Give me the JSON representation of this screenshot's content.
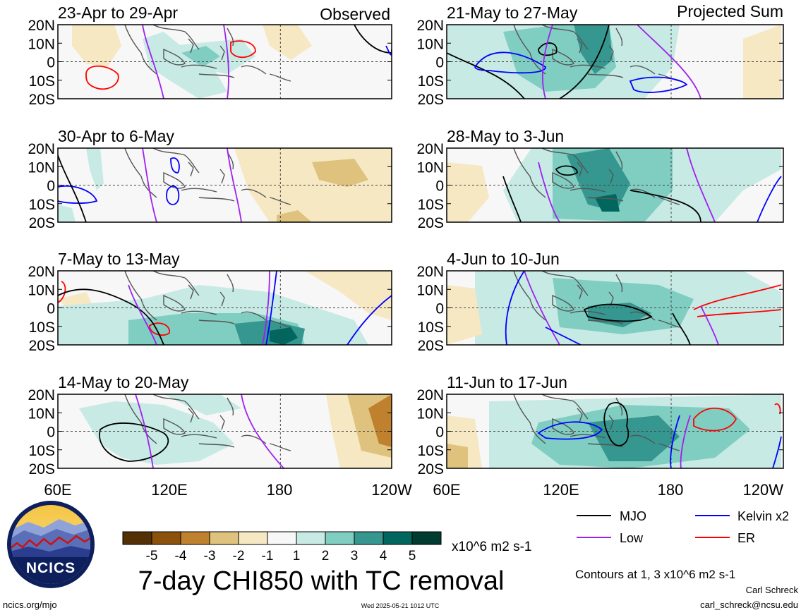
{
  "column_titles": {
    "left": "Observed",
    "right": "Projected Sum"
  },
  "panels": [
    {
      "id": "p1",
      "title": "23-Apr to 29-Apr",
      "col": 0,
      "row": 0
    },
    {
      "id": "p2",
      "title": "30-Apr to 6-May",
      "col": 0,
      "row": 1
    },
    {
      "id": "p3",
      "title": "7-May to 13-May",
      "col": 0,
      "row": 2
    },
    {
      "id": "p4",
      "title": "14-May to 20-May",
      "col": 0,
      "row": 3
    },
    {
      "id": "p5",
      "title": "21-May to 27-May",
      "col": 1,
      "row": 0
    },
    {
      "id": "p6",
      "title": "28-May to 3-Jun",
      "col": 1,
      "row": 1
    },
    {
      "id": "p7",
      "title": "4-Jun to 10-Jun",
      "col": 1,
      "row": 2
    },
    {
      "id": "p8",
      "title": "11-Jun to 17-Jun",
      "col": 1,
      "row": 3
    }
  ],
  "lat_labels": [
    "20N",
    "10N",
    "0",
    "10S",
    "20S"
  ],
  "lon_labels": [
    "60E",
    "120E",
    "180",
    "120W"
  ],
  "colorbar": {
    "ticks": [
      "-5",
      "-4",
      "-3",
      "-2",
      "-1",
      "1",
      "2",
      "3",
      "4",
      "5"
    ],
    "colors": [
      "#543005",
      "#8c510a",
      "#bf812d",
      "#dfc27d",
      "#f6e8c3",
      "#f7f7f7",
      "#c7eae5",
      "#80cdc1",
      "#35978f",
      "#01665e",
      "#003c30"
    ],
    "units": "x10^6 m2 s-1"
  },
  "legend": [
    {
      "label": "MJO",
      "color": "#000000"
    },
    {
      "label": "Kelvin x2",
      "color": "#0000ff"
    },
    {
      "label": "Low",
      "color": "#a020f0"
    },
    {
      "label": "ER",
      "color": "#ff0000"
    }
  ],
  "contour_note": "Contours at 1, 3 x10^6 m2 s-1",
  "title": "7-day CHI850 with TC removal",
  "logo_text": "NCICS",
  "footer": {
    "url": "ncics.org/mjo",
    "timestamp": "Wed 2025-05-21 1012 UTC",
    "author": "Carl Schreck",
    "email": "carl_schreck@ncsu.edu"
  }
}
